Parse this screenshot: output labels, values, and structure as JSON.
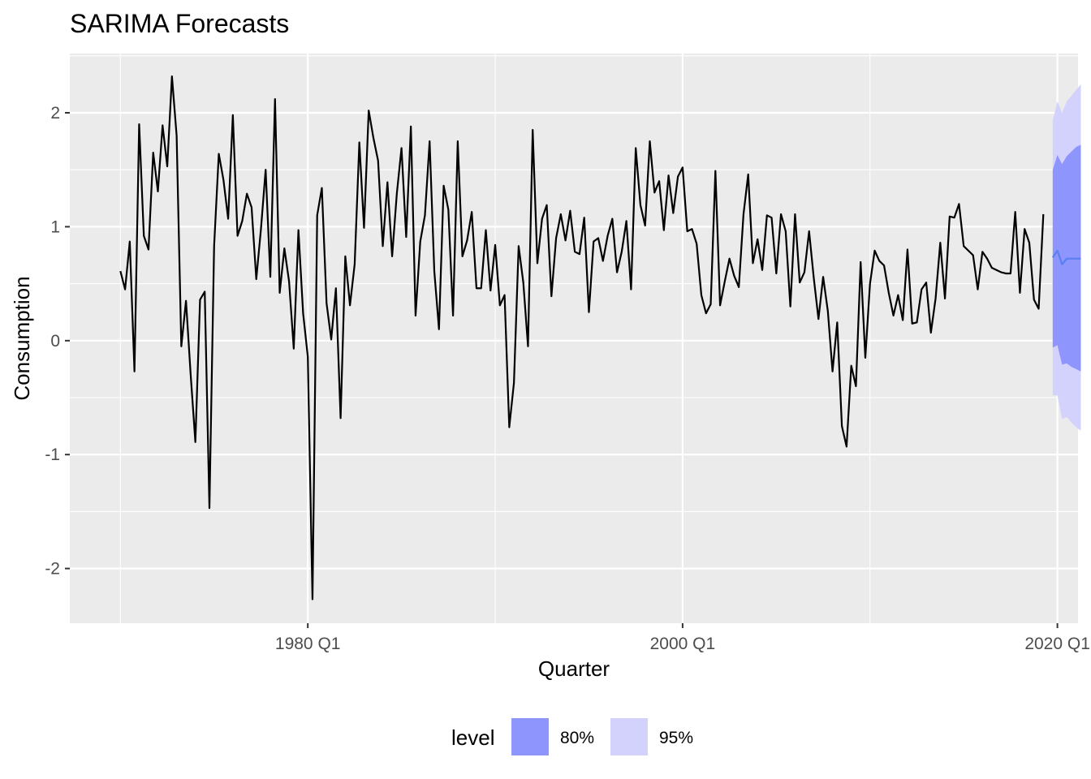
{
  "chart_data": {
    "type": "line",
    "title": "SARIMA Forecasts",
    "xlabel": "Quarter",
    "ylabel": "Consumption",
    "xlim": [
      1967.3,
      2021.1
    ],
    "ylim": [
      -2.48,
      2.52
    ],
    "grid": true,
    "x_ticks": [
      {
        "value": 1980.0,
        "label": "1980 Q1"
      },
      {
        "value": 2000.0,
        "label": "2000 Q1"
      },
      {
        "value": 2020.0,
        "label": "2020 Q1"
      }
    ],
    "y_ticks": [
      {
        "value": -2,
        "label": "-2"
      },
      {
        "value": -1,
        "label": "-1"
      },
      {
        "value": 0,
        "label": "0"
      },
      {
        "value": 1,
        "label": "1"
      },
      {
        "value": 2,
        "label": "2"
      }
    ],
    "history": {
      "start": 1970.0,
      "step": 0.25,
      "values": [
        0.61,
        0.45,
        0.87,
        -0.27,
        1.9,
        0.92,
        0.8,
        1.65,
        1.31,
        1.89,
        1.53,
        2.32,
        1.8,
        -0.05,
        0.35,
        -0.3,
        -0.89,
        0.36,
        0.43,
        -1.47,
        0.83,
        1.64,
        1.41,
        1.07,
        1.98,
        0.92,
        1.05,
        1.29,
        1.17,
        0.54,
        0.98,
        1.5,
        0.56,
        2.12,
        0.42,
        0.81,
        0.52,
        -0.07,
        0.97,
        0.24,
        -0.14,
        -2.27,
        1.1,
        1.34,
        0.33,
        0.01,
        0.46,
        -0.68,
        0.74,
        0.31,
        0.67,
        1.74,
        0.99,
        2.02,
        1.78,
        1.58,
        0.83,
        1.39,
        0.74,
        1.29,
        1.69,
        0.91,
        1.88,
        0.22,
        0.87,
        1.1,
        1.75,
        0.61,
        0.1,
        1.36,
        1.15,
        0.22,
        1.75,
        0.74,
        0.88,
        1.13,
        0.46,
        0.46,
        0.97,
        0.44,
        0.84,
        0.31,
        0.4,
        -0.76,
        -0.37,
        0.83,
        0.51,
        -0.05,
        1.85,
        0.68,
        1.07,
        1.19,
        0.39,
        0.9,
        1.11,
        0.88,
        1.14,
        0.78,
        0.76,
        1.08,
        0.25,
        0.87,
        0.9,
        0.7,
        0.92,
        1.07,
        0.6,
        0.78,
        1.05,
        0.45,
        1.69,
        1.19,
        1.01,
        1.75,
        1.3,
        1.4,
        0.97,
        1.45,
        1.12,
        1.44,
        1.52,
        0.96,
        0.98,
        0.85,
        0.4,
        0.24,
        0.32,
        1.49,
        0.31,
        0.52,
        0.72,
        0.57,
        0.47,
        1.11,
        1.46,
        0.68,
        0.89,
        0.62,
        1.1,
        1.08,
        0.59,
        1.11,
        0.96,
        0.3,
        1.11,
        0.51,
        0.6,
        0.96,
        0.55,
        0.19,
        0.56,
        0.26,
        -0.27,
        0.16,
        -0.75,
        -0.93,
        -0.22,
        -0.4,
        0.69,
        -0.15,
        0.5,
        0.79,
        0.7,
        0.66,
        0.42,
        0.22,
        0.4,
        0.18,
        0.8,
        0.15,
        0.16,
        0.45,
        0.51,
        0.07,
        0.37,
        0.86,
        0.37,
        1.09,
        1.08,
        1.2,
        0.83,
        0.79,
        0.75,
        0.45,
        0.78,
        0.72,
        0.64,
        0.62,
        0.6,
        0.59,
        0.59,
        1.13,
        0.42,
        0.98,
        0.86,
        0.36,
        0.28,
        1.11
      ]
    },
    "forecast": {
      "x": [
        2019.75,
        2020.0,
        2020.25,
        2020.5,
        2020.75,
        2021.0,
        2021.25
      ],
      "mean": [
        0.73,
        0.79,
        0.67,
        0.72,
        0.72,
        0.72,
        0.72
      ],
      "lower_80": [
        -0.06,
        -0.04,
        -0.21,
        -0.2,
        -0.23,
        -0.25,
        -0.27
      ],
      "upper_80": [
        1.5,
        1.63,
        1.55,
        1.62,
        1.66,
        1.7,
        1.72
      ],
      "lower_95": [
        -0.48,
        -0.48,
        -0.69,
        -0.67,
        -0.72,
        -0.76,
        -0.79
      ],
      "upper_95": [
        1.93,
        2.1,
        2.0,
        2.1,
        2.15,
        2.2,
        2.25
      ]
    },
    "legend": {
      "position": "bottom",
      "title": "level",
      "items": [
        {
          "label": "80%",
          "color": "#8e96fd"
        },
        {
          "label": "95%",
          "color": "#d2d2fc"
        }
      ]
    },
    "colors": {
      "panel": "#ebebeb",
      "grid": "#ffffff",
      "history_line": "#000000",
      "forecast_line": "#5a7ff0",
      "band_80": "#8e96fd",
      "band_95": "#d2d2fc"
    }
  }
}
